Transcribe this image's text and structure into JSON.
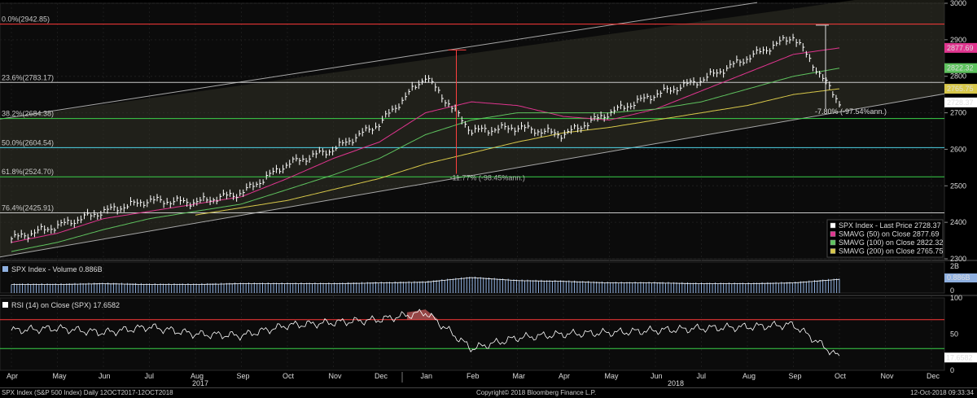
{
  "footer": {
    "left": "SPX Index (S&P 500 Index)  Daily 12OCT2017-12OCT2018",
    "center": "Copyright© 2018 Bloomberg Finance L.P.",
    "right": "12-Oct-2018 09:33:34"
  },
  "colors": {
    "background": "#000000",
    "panel": "#0b0b0b",
    "price": "#ffffff",
    "sma50": "#e0358f",
    "sma100": "#5fc35f",
    "sma200": "#d8c84a",
    "fibLine": "#c9c9c9",
    "fib0": "#ff3b3b",
    "fib382": "#3bd14a",
    "fib50": "#4fd5e8",
    "fib618": "#3bd14a",
    "trend": "#a8a8a8",
    "rsiLine": "#ffffff",
    "rsiFill": "#d06060",
    "rsiBandHigh": "#ff3b3b",
    "rsiBandLow": "#3bd14a",
    "volume": "#8fb0e0",
    "measure": "#ff4040"
  },
  "chart_data": [
    {
      "type": "line",
      "panel": "price",
      "ylim": [
        2300,
        3000
      ],
      "yticks": [
        2300,
        2400,
        2500,
        2600,
        2700,
        2800,
        2900,
        3000
      ],
      "x_tick_labels": [
        "Apr",
        "May",
        "Jun",
        "Jul",
        "Aug",
        "Sep",
        "Oct",
        "Nov",
        "Dec",
        "Jan",
        "Feb",
        "Mar",
        "Apr",
        "May",
        "Jun",
        "Jul",
        "Aug",
        "Sep",
        "Oct",
        "Nov",
        "Dec"
      ],
      "year_labels": [
        "2017",
        "2018"
      ],
      "x": [
        "2017-04",
        "2017-05",
        "2017-06",
        "2017-07",
        "2017-08",
        "2017-09",
        "2017-10",
        "2017-11",
        "2017-12",
        "2018-01",
        "2018-02",
        "2018-03",
        "2018-04",
        "2018-05",
        "2018-06",
        "2018-07",
        "2018-08",
        "2018-09",
        "2018-10",
        "2018-11",
        "2018-12"
      ],
      "series": [
        {
          "name": "SPX Index - Last Price",
          "values": [
            2355,
            2390,
            2430,
            2460,
            2455,
            2480,
            2560,
            2600,
            2670,
            2800,
            2650,
            2660,
            2640,
            2700,
            2750,
            2790,
            2850,
            2910,
            2728.37,
            null,
            null
          ]
        },
        {
          "name": "SMAVG (50)  on Close",
          "values": [
            2345,
            2370,
            2410,
            2430,
            2450,
            2470,
            2520,
            2575,
            2620,
            2700,
            2730,
            2720,
            2690,
            2680,
            2710,
            2760,
            2810,
            2860,
            2877.69,
            null,
            null
          ]
        },
        {
          "name": "SMAVG (100)  on Close",
          "values": [
            2320,
            2345,
            2380,
            2410,
            2430,
            2450,
            2490,
            2530,
            2575,
            2640,
            2680,
            2700,
            2700,
            2700,
            2710,
            2730,
            2765,
            2800,
            2822.32,
            null,
            null
          ]
        },
        {
          "name": "SMAVG (200)  on Close",
          "values": [
            null,
            null,
            null,
            null,
            2420,
            2440,
            2460,
            2490,
            2520,
            2560,
            2590,
            2620,
            2645,
            2660,
            2680,
            2700,
            2720,
            2750,
            2765.75,
            null,
            null
          ]
        }
      ],
      "fib_levels": [
        {
          "label": "0.0%(2942.85)",
          "value": 2942.85
        },
        {
          "label": "23.6%(2783.17)",
          "value": 2783.17
        },
        {
          "label": "38.2%(2684.38)",
          "value": 2684.38
        },
        {
          "label": "50.0%(2604.54)",
          "value": 2604.54
        },
        {
          "label": "61.8%(2524.70)",
          "value": 2524.7
        },
        {
          "label": "76.4%(2425.91)",
          "value": 2425.91
        }
      ],
      "annotations": [
        {
          "text": "-7.80% (-97.54%ann.)"
        },
        {
          "text": "-11.77% (-98.45%ann.)"
        }
      ],
      "last_values": [
        {
          "text": "2877.69",
          "value": 2877.69
        },
        {
          "text": "2822.32",
          "value": 2822.32
        },
        {
          "text": "2765.75",
          "value": 2765.75
        },
        {
          "text": "2728.37",
          "value": 2728.37
        }
      ],
      "legend_placement": "bottom-right",
      "legend": [
        {
          "text": "SPX Index - Last Price  2728.37",
          "color": "#ffffff"
        },
        {
          "text": "SMAVG (50)  on Close  2877.69",
          "color": "#e0358f"
        },
        {
          "text": "SMAVG (100)  on Close  2822.32",
          "color": "#5fc35f"
        },
        {
          "text": "SMAVG (200)  on Close  2765.75",
          "color": "#d8c84a"
        }
      ]
    },
    {
      "type": "bar",
      "panel": "volume",
      "title": "SPX Index - Volume 0.886B",
      "ylim": [
        0,
        2
      ],
      "ytick_labels": [
        "2B",
        "1",
        "0"
      ],
      "last_value_label": "0.886B",
      "values_B": [
        0.55,
        0.55,
        0.6,
        0.55,
        0.55,
        0.6,
        0.6,
        0.6,
        0.65,
        0.7,
        1.0,
        0.8,
        0.75,
        0.65,
        0.65,
        0.6,
        0.6,
        0.65,
        0.886
      ]
    },
    {
      "type": "line",
      "panel": "rsi",
      "title": "RSI (14)  on Close (SPX) 17.6582",
      "ylim": [
        0,
        100
      ],
      "yticks": [
        0,
        50,
        100
      ],
      "bands": [
        70,
        30
      ],
      "last_value_label": "17.6582",
      "values": [
        55,
        58,
        52,
        60,
        50,
        48,
        62,
        66,
        70,
        80,
        30,
        45,
        50,
        52,
        55,
        58,
        60,
        63,
        17.6582
      ]
    }
  ]
}
